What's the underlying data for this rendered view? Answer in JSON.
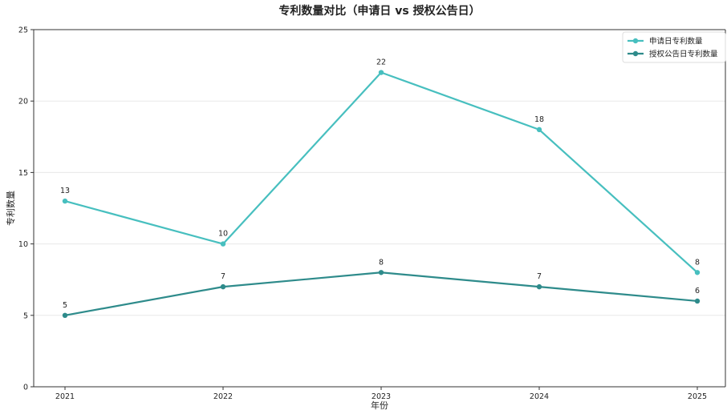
{
  "chart_data": {
    "type": "line",
    "title": "专利数量对比（申请日 vs 授权公告日）",
    "xlabel": "年份",
    "ylabel": "专利数量",
    "categories": [
      "2021",
      "2022",
      "2023",
      "2024",
      "2025"
    ],
    "ylim": [
      0,
      25
    ],
    "yticks": [
      0,
      5,
      10,
      15,
      20,
      25
    ],
    "grid": "horizontal",
    "legend_position": "top-right",
    "series": [
      {
        "name": "申请日专利数量",
        "values": [
          13,
          10,
          22,
          18,
          8
        ],
        "color": "#47bfbf"
      },
      {
        "name": "授权公告日专利数量",
        "values": [
          5,
          7,
          8,
          7,
          6
        ],
        "color": "#2e8b8b"
      }
    ]
  }
}
